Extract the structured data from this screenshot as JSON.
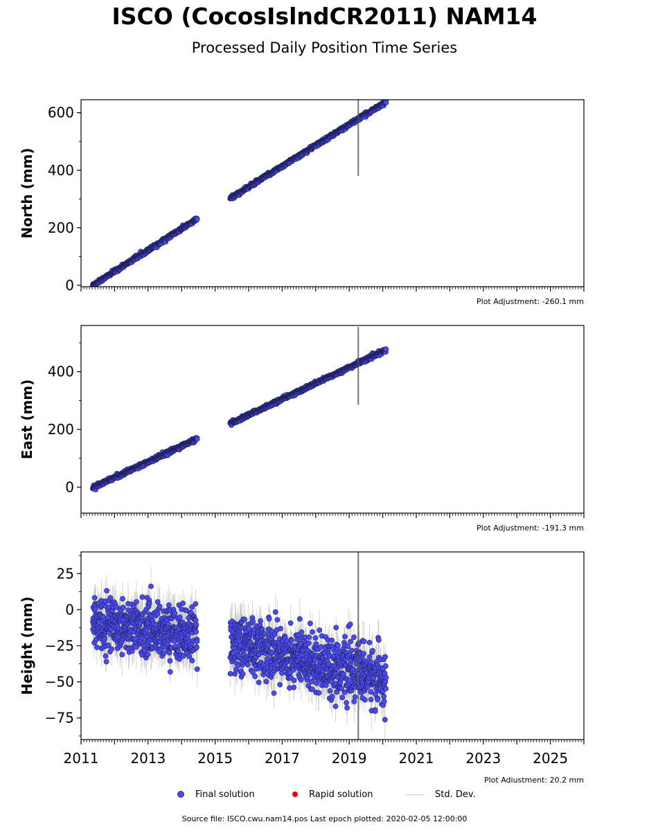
{
  "header": {
    "title": "ISCO (CocosIslndCR2011) NAM14",
    "subtitle": "Processed Daily Position Time Series"
  },
  "colors": {
    "final_fill": "#4a4af0",
    "final_edge": "#1f1f55",
    "rapid": "#e00000",
    "std_dev": "#b0b0b0"
  },
  "legend": {
    "final": "Final solution",
    "rapid": "Rapid solution",
    "std": "Std. Dev."
  },
  "footer": "Source file: ISCO.cwu.nam14.pos  Last epoch plotted: 2020-02-05 12:00:00",
  "chart_data": [
    {
      "type": "scatter",
      "ylabel": "North (mm)",
      "adjustment": "Plot Adjustment: -260.1 mm",
      "xlim": [
        2011.0,
        2026.0
      ],
      "ylim": [
        -5,
        645
      ],
      "yticks": [
        0,
        200,
        400,
        600
      ],
      "show_x_ticklabels": false,
      "spike": {
        "x": 2019.27,
        "low": 380,
        "high": 645
      },
      "series": [
        {
          "x_start": 2011.35,
          "x_end": 2014.47,
          "y_start": 0,
          "y_end": 231,
          "noise": 3,
          "err": 3
        },
        {
          "x_start": 2015.45,
          "x_end": 2020.1,
          "y_start": 302,
          "y_end": 638,
          "noise": 3,
          "err": 3
        }
      ]
    },
    {
      "type": "scatter",
      "ylabel": "East (mm)",
      "adjustment": "Plot Adjustment: -191.3 mm",
      "xlim": [
        2011.0,
        2026.0
      ],
      "ylim": [
        -90,
        560
      ],
      "yticks": [
        0,
        200,
        400
      ],
      "show_x_ticklabels": false,
      "spike": {
        "x": 2019.27,
        "low": 285,
        "high": 555
      },
      "series": [
        {
          "x_start": 2011.35,
          "x_end": 2014.47,
          "y_start": -2,
          "y_end": 168,
          "noise": 3,
          "err": 3
        },
        {
          "x_start": 2015.45,
          "x_end": 2020.1,
          "y_start": 220,
          "y_end": 475,
          "noise": 3,
          "err": 3
        }
      ]
    },
    {
      "type": "scatter",
      "ylabel": "Height (mm)",
      "adjustment": "Plot Adjustment: 20.2 mm",
      "xlim": [
        2011.0,
        2026.0
      ],
      "ylim": [
        -90,
        40
      ],
      "yticks": [
        25,
        0,
        -25,
        -50,
        -75
      ],
      "ytick_labels": [
        "25",
        "0",
        "−25",
        "−50",
        "−75"
      ],
      "xticks": [
        2011,
        2013,
        2015,
        2017,
        2019,
        2021,
        2023,
        2025
      ],
      "show_x_ticklabels": true,
      "spike": {
        "x": 2019.27,
        "low": -90,
        "high": 40
      },
      "series": [
        {
          "x_start": 2011.35,
          "x_end": 2014.47,
          "y_start": -8,
          "y_end": -18,
          "noise": 9,
          "err": 10
        },
        {
          "x_start": 2015.45,
          "x_end": 2020.1,
          "y_start": -22,
          "y_end": -48,
          "noise": 10,
          "err": 10
        }
      ]
    }
  ]
}
